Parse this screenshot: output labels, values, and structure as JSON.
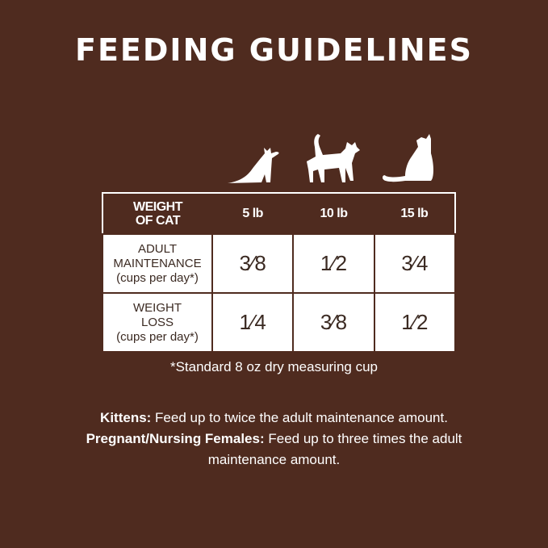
{
  "title": "FEEDING GUIDELINES",
  "icons": [
    "kitten-silhouette-icon",
    "walking-cat-silhouette-icon",
    "sitting-cat-silhouette-icon"
  ],
  "table": {
    "header": {
      "label_line1": "WEIGHT",
      "label_line2": "OF CAT",
      "columns": [
        "5 lb",
        "10 lb",
        "15 lb"
      ]
    },
    "rows": [
      {
        "line1": "ADULT",
        "line2": "MAINTENANCE",
        "line3": "(cups per day*)",
        "values": [
          "3⁄8",
          "1⁄2",
          "3⁄4"
        ]
      },
      {
        "line1": "WEIGHT",
        "line2": "LOSS",
        "line3": "(cups per day*)",
        "values": [
          "1⁄4",
          "3⁄8",
          "1⁄2"
        ]
      }
    ]
  },
  "footnote": "*Standard 8 oz dry measuring cup",
  "kittens": {
    "label": "Kittens:",
    "text": " Feed up to twice the adult maintenance amount."
  },
  "pregnant": {
    "label": "Pregnant/Nursing Females:",
    "text": " Feed up to three times the adult maintenance amount."
  },
  "colors": {
    "background": "#4f2b1f",
    "table_cell": "#ffffff",
    "text_dark": "#3b2a22"
  }
}
